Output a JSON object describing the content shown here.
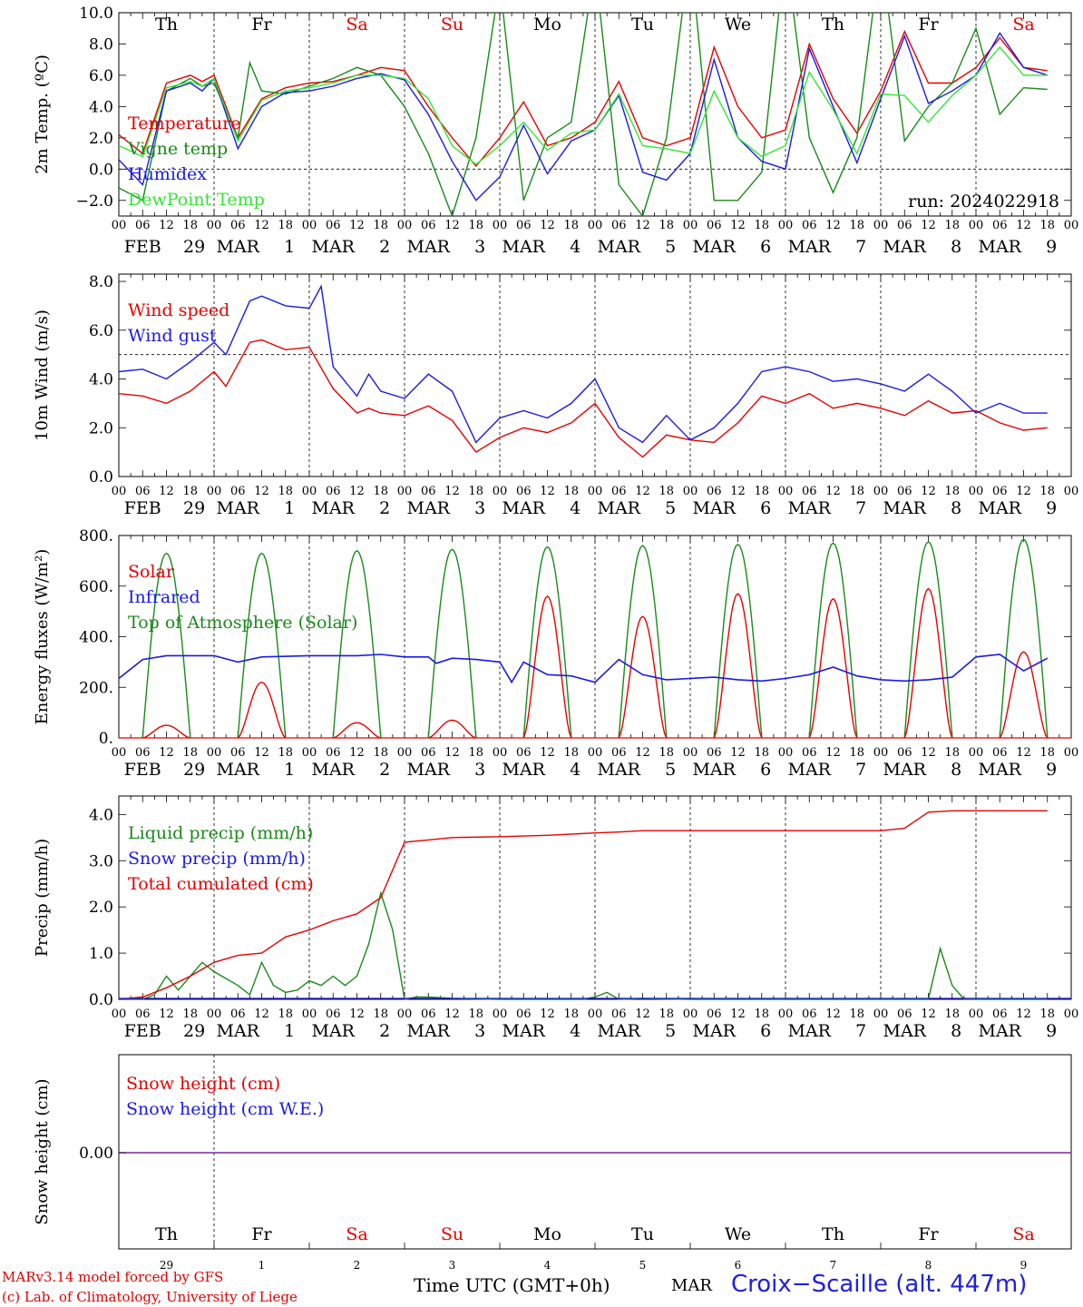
{
  "colors": {
    "red": "#e60000",
    "green": "#1a8a1a",
    "blue": "#1a1ae6",
    "lightgreen": "#33e633",
    "purple": "#7a2a9a",
    "sat": "#e60000",
    "sun": "#e60000",
    "weekday": "#000000"
  },
  "footer": {
    "model": "MARv3.14 model forced by GFS",
    "lab": "(c) Lab. of Climatology, University of Liege",
    "time_label": "Time UTC (GMT+0h)",
    "month": "MAR",
    "station": "Croix−Scaille (alt. 447m)"
  },
  "chart_data": {
    "type": "line",
    "hour_ticks": [
      "00",
      "06",
      "12",
      "18"
    ],
    "day_labels": [
      "FEB 29",
      "MAR  1",
      "MAR  2",
      "MAR  3",
      "MAR  4",
      "MAR  5",
      "MAR  6",
      "MAR  7",
      "MAR  8",
      "MAR  9"
    ],
    "weekdays": [
      "Th",
      "Fr",
      "Sa",
      "Su",
      "Mo",
      "Tu",
      "We",
      "Th",
      "Fr",
      "Sa"
    ],
    "weekend_index": [
      2,
      3,
      9
    ],
    "bottom_dates": [
      "29",
      "1",
      "2",
      "3",
      "4",
      "5",
      "6",
      "7",
      "8",
      "9"
    ],
    "panels": [
      {
        "id": "temperature",
        "ylabel": "2m Temp. (ºC)",
        "ylim": [
          -3,
          10
        ],
        "yticks": [
          -2,
          0,
          2,
          4,
          6,
          8,
          10
        ],
        "ytick_labels": [
          "−2.0",
          "0.0",
          "2.0",
          "4.0",
          "6.0",
          "8.0",
          "10.0"
        ],
        "dashed_zero": 0,
        "run_label": "run: 2024022918",
        "legend": [
          {
            "name": "Temperature",
            "color": "#e60000"
          },
          {
            "name": "Vigne temp",
            "color": "#1a8a1a"
          },
          {
            "name": "Humidex",
            "color": "#1a1ae6"
          },
          {
            "name": "DewPoint Temp",
            "color": "#33e633"
          }
        ],
        "series": [
          {
            "name": "Temperature",
            "color": "#e60000",
            "x": [
              0,
              6,
              12,
              18,
              21,
              24,
              30,
              36,
              42,
              48,
              54,
              60,
              66,
              72,
              78,
              84,
              90,
              96,
              102,
              108,
              114,
              120,
              126,
              132,
              138,
              144,
              150,
              156,
              162,
              168,
              174,
              180,
              186,
              192,
              198,
              204,
              210,
              216,
              222,
              228,
              234
            ],
            "y": [
              2.2,
              1.0,
              5.5,
              6.0,
              5.6,
              6.0,
              2.0,
              4.5,
              5.2,
              5.5,
              5.6,
              6.0,
              6.5,
              6.3,
              4.0,
              2.0,
              0.2,
              2.0,
              4.3,
              1.5,
              2.0,
              3.0,
              5.6,
              2.0,
              1.5,
              2.0,
              7.8,
              4.0,
              2.0,
              2.5,
              8.0,
              4.5,
              2.3,
              5.0,
              8.8,
              5.5,
              5.5,
              6.5,
              8.4,
              6.5,
              6.3
            ]
          },
          {
            "name": "Vigne temp",
            "color": "#1a8a1a",
            "x": [
              0,
              6,
              12,
              18,
              21,
              24,
              30,
              33,
              36,
              42,
              48,
              54,
              60,
              66,
              72,
              78,
              84,
              90,
              96,
              102,
              108,
              114,
              120,
              126,
              132,
              138,
              144,
              150,
              156,
              162,
              168,
              174,
              180,
              186,
              192,
              198,
              204,
              210,
              216,
              222,
              228,
              234
            ],
            "y": [
              -1.2,
              -2.0,
              5.0,
              5.8,
              5.3,
              5.5,
              2.0,
              6.8,
              5.0,
              4.8,
              5.3,
              5.8,
              6.5,
              6.0,
              4.0,
              1.0,
              -3.0,
              2.0,
              12.0,
              -2.0,
              2.0,
              3.0,
              13.0,
              -1.0,
              -3.0,
              2.0,
              14.0,
              -2.0,
              -2.0,
              -0.2,
              14.0,
              2.0,
              -1.5,
              2.0,
              14.0,
              1.8,
              4.0,
              5.5,
              9.0,
              3.5,
              5.2,
              5.1
            ]
          },
          {
            "name": "Humidex",
            "color": "#1a1ae6",
            "x": [
              0,
              6,
              12,
              18,
              21,
              24,
              30,
              36,
              42,
              48,
              54,
              60,
              66,
              72,
              78,
              84,
              90,
              96,
              102,
              108,
              114,
              120,
              126,
              132,
              138,
              144,
              150,
              156,
              162,
              168,
              174,
              180,
              186,
              192,
              198,
              204,
              210,
              216,
              222,
              228,
              234
            ],
            "y": [
              0.6,
              -1.0,
              5.0,
              5.5,
              5.0,
              5.8,
              1.3,
              4.0,
              4.9,
              5.0,
              5.3,
              5.8,
              6.1,
              5.7,
              3.5,
              0.5,
              -2.0,
              -0.5,
              2.8,
              -0.3,
              1.8,
              2.5,
              4.7,
              -0.2,
              -0.7,
              1.0,
              7.0,
              2.0,
              0.5,
              0.0,
              7.7,
              4.0,
              0.4,
              4.5,
              8.5,
              4.2,
              5.0,
              6.0,
              8.7,
              6.5,
              6.0
            ]
          },
          {
            "name": "DewPoint Temp",
            "color": "#33e633",
            "x": [
              0,
              6,
              12,
              18,
              21,
              24,
              30,
              36,
              42,
              48,
              54,
              60,
              66,
              72,
              78,
              84,
              90,
              96,
              102,
              108,
              114,
              120,
              126,
              132,
              138,
              144,
              150,
              156,
              162,
              168,
              174,
              180,
              186,
              192,
              198,
              204,
              210,
              216,
              222,
              228,
              234
            ],
            "y": [
              1.5,
              0.8,
              5.2,
              5.6,
              5.3,
              5.8,
              1.8,
              4.4,
              5.0,
              5.2,
              5.5,
              6.0,
              6.0,
              5.8,
              4.5,
              1.5,
              0.3,
              1.5,
              3.0,
              1.2,
              2.3,
              2.5,
              4.8,
              1.5,
              1.3,
              1.0,
              5.0,
              2.0,
              0.8,
              1.5,
              6.2,
              3.8,
              1.0,
              4.8,
              4.7,
              3.0,
              4.7,
              6.0,
              7.8,
              6.0,
              6.0
            ]
          }
        ]
      },
      {
        "id": "wind",
        "ylabel": "10m Wind (m/s)",
        "ylim": [
          0,
          8.3
        ],
        "yticks": [
          0,
          2,
          4,
          6,
          8
        ],
        "ytick_labels": [
          "0.0",
          "2.0",
          "4.0",
          "6.0",
          "8.0"
        ],
        "dashed_zero": 5,
        "legend": [
          {
            "name": "Wind speed",
            "color": "#e60000"
          },
          {
            "name": "Wind gust",
            "color": "#1a1ae6"
          }
        ],
        "series": [
          {
            "name": "Wind speed",
            "color": "#e60000",
            "x": [
              0,
              6,
              12,
              18,
              24,
              27,
              33,
              36,
              42,
              48,
              54,
              60,
              63,
              66,
              72,
              78,
              84,
              90,
              96,
              102,
              108,
              114,
              120,
              126,
              132,
              138,
              144,
              150,
              156,
              162,
              168,
              174,
              180,
              186,
              192,
              198,
              204,
              210,
              216,
              222,
              228,
              234
            ],
            "y": [
              3.4,
              3.3,
              3.0,
              3.5,
              4.3,
              3.7,
              5.5,
              5.6,
              5.2,
              5.3,
              3.6,
              2.6,
              2.8,
              2.6,
              2.5,
              2.9,
              2.3,
              1.0,
              1.6,
              2.0,
              1.8,
              2.2,
              3.0,
              1.6,
              0.8,
              1.7,
              1.5,
              1.4,
              2.2,
              3.3,
              3.0,
              3.4,
              2.8,
              3.0,
              2.8,
              2.5,
              3.1,
              2.6,
              2.7,
              2.2,
              1.9,
              2.0
            ]
          },
          {
            "name": "Wind gust",
            "color": "#1a1ae6",
            "x": [
              0,
              6,
              12,
              18,
              24,
              27,
              33,
              36,
              42,
              48,
              51,
              54,
              60,
              63,
              66,
              72,
              78,
              84,
              90,
              96,
              102,
              108,
              114,
              120,
              126,
              132,
              138,
              144,
              150,
              156,
              162,
              168,
              174,
              180,
              186,
              192,
              198,
              204,
              210,
              216,
              222,
              228,
              234
            ],
            "y": [
              4.3,
              4.4,
              4.0,
              4.7,
              5.5,
              5.0,
              7.2,
              7.4,
              7.0,
              6.9,
              7.8,
              4.5,
              3.3,
              4.2,
              3.5,
              3.2,
              4.2,
              3.5,
              1.4,
              2.4,
              2.7,
              2.4,
              3.0,
              4.0,
              2.0,
              1.4,
              2.5,
              1.5,
              2.0,
              3.0,
              4.3,
              4.5,
              4.3,
              3.9,
              4.0,
              3.8,
              3.5,
              4.2,
              3.5,
              2.6,
              3.0,
              2.6,
              2.6
            ]
          }
        ]
      },
      {
        "id": "energy",
        "ylabel": "Energy fluxes (W/m²)",
        "ylim": [
          0,
          800
        ],
        "yticks": [
          0,
          200,
          400,
          600,
          800
        ],
        "ytick_labels": [
          "0.",
          "200.",
          "400.",
          "600.",
          "800."
        ],
        "legend": [
          {
            "name": "Solar",
            "color": "#e60000"
          },
          {
            "name": "Infrared",
            "color": "#1a1ae6"
          },
          {
            "name": "Top of Atmosphere (Solar)",
            "color": "#1a8a1a"
          }
        ],
        "toa_peaks": [
          730,
          730,
          740,
          745,
          755,
          760,
          765,
          770,
          775,
          785
        ],
        "solar_peaks": [
          50,
          220,
          60,
          70,
          560,
          480,
          570,
          550,
          590,
          340
        ],
        "series": [
          {
            "name": "Infrared",
            "color": "#1a1ae6",
            "x": [
              0,
              6,
              12,
              24,
              30,
              36,
              48,
              60,
              66,
              72,
              78,
              80,
              84,
              90,
              96,
              99,
              102,
              108,
              114,
              120,
              126,
              132,
              138,
              144,
              150,
              156,
              162,
              168,
              174,
              180,
              186,
              192,
              198,
              204,
              210,
              216,
              222,
              228,
              234
            ],
            "y": [
              235,
              310,
              325,
              325,
              300,
              320,
              325,
              325,
              330,
              320,
              320,
              295,
              315,
              310,
              300,
              220,
              300,
              250,
              245,
              220,
              310,
              250,
              230,
              235,
              240,
              230,
              225,
              235,
              250,
              280,
              245,
              230,
              225,
              230,
              240,
              320,
              330,
              265,
              315
            ]
          }
        ]
      },
      {
        "id": "precip",
        "ylabel": "Precip (mm/h)",
        "ylim": [
          0,
          4.4
        ],
        "yticks": [
          0,
          1,
          2,
          3,
          4
        ],
        "ytick_labels": [
          "0.0",
          "1.0",
          "2.0",
          "3.0",
          "4.0"
        ],
        "legend": [
          {
            "name": "Liquid precip (mm/h)",
            "color": "#1a8a1a"
          },
          {
            "name": "Snow precip (mm/h)",
            "color": "#1a1ae6"
          },
          {
            "name": "Total cumulated (cm)",
            "color": "#e60000"
          }
        ],
        "series": [
          {
            "name": "Total cumulated (cm)",
            "color": "#e60000",
            "x": [
              0,
              6,
              12,
              18,
              24,
              30,
              36,
              42,
              48,
              54,
              60,
              66,
              72,
              78,
              84,
              96,
              108,
              120,
              126,
              132,
              144,
              168,
              192,
              198,
              204,
              210,
              216,
              234
            ],
            "y": [
              0,
              0.05,
              0.25,
              0.5,
              0.8,
              0.95,
              1.0,
              1.35,
              1.5,
              1.7,
              1.85,
              2.2,
              3.4,
              3.45,
              3.5,
              3.52,
              3.55,
              3.6,
              3.62,
              3.65,
              3.65,
              3.65,
              3.65,
              3.7,
              4.05,
              4.08,
              4.08,
              4.08
            ]
          },
          {
            "name": "Liquid precip (mm/h)",
            "color": "#1a8a1a",
            "x": [
              0,
              6,
              9,
              12,
              15,
              18,
              21,
              24,
              27,
              30,
              33,
              36,
              39,
              42,
              45,
              48,
              51,
              54,
              57,
              60,
              63,
              66,
              69,
              72,
              75,
              78,
              84,
              96,
              108,
              117,
              120,
              123,
              126,
              132,
              144,
              192,
              204,
              207,
              210,
              213,
              216,
              234
            ],
            "y": [
              0,
              0,
              0.1,
              0.5,
              0.2,
              0.5,
              0.8,
              0.6,
              0.45,
              0.3,
              0.1,
              0.8,
              0.3,
              0.15,
              0.2,
              0.4,
              0.3,
              0.5,
              0.3,
              0.5,
              1.2,
              2.3,
              1.5,
              0,
              0.05,
              0.05,
              0.02,
              0,
              0,
              0,
              0.05,
              0.15,
              0,
              0.02,
              0,
              0,
              0,
              1.1,
              0.3,
              0,
              0,
              0
            ]
          }
        ]
      },
      {
        "id": "snow",
        "ylabel": "Snow height (cm)",
        "ytick_labels": [
          "0.00"
        ],
        "legend": [
          {
            "name": "Snow height (cm)",
            "color": "#e60000"
          },
          {
            "name": "Snow height (cm W.E.)",
            "color": "#1a1ae6"
          }
        ],
        "value": 0.0
      }
    ]
  }
}
